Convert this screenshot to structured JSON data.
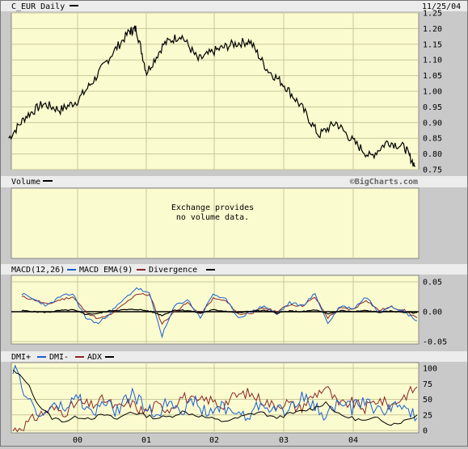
{
  "chart_data": [
    {
      "type": "line",
      "panel": "price",
      "title": "C_EUR Daily",
      "date": "11/25/04",
      "ylim": [
        0.75,
        1.25
      ],
      "yticks": [
        0.75,
        0.8,
        0.85,
        0.9,
        0.95,
        1.0,
        1.05,
        1.1,
        1.15,
        1.2,
        1.25
      ],
      "xticks": [
        "00",
        "01",
        "02",
        "03",
        "04"
      ],
      "x": [
        1999.0,
        1999.25,
        1999.5,
        1999.75,
        2000.0,
        2000.25,
        2000.5,
        2000.75,
        2000.85,
        2001.0,
        2001.25,
        2001.5,
        2001.75,
        2002.0,
        2002.25,
        2002.5,
        2002.75,
        2003.0,
        2003.25,
        2003.5,
        2003.75,
        2004.0,
        2004.25,
        2004.5,
        2004.75,
        2004.9
      ],
      "series": [
        {
          "name": "C_EUR",
          "values": [
            0.85,
            0.92,
            0.96,
            0.94,
            0.97,
            1.04,
            1.12,
            1.19,
            1.2,
            1.06,
            1.15,
            1.18,
            1.1,
            1.13,
            1.15,
            1.16,
            1.07,
            1.02,
            0.95,
            0.86,
            0.9,
            0.84,
            0.79,
            0.84,
            0.82,
            0.76
          ]
        }
      ]
    },
    {
      "type": "bar",
      "panel": "volume",
      "title": "Volume",
      "watermark": "©BigCharts.com",
      "message": [
        "Exchange provides",
        "no volume data."
      ]
    },
    {
      "type": "line",
      "panel": "macd",
      "ylim": [
        -0.05,
        0.05
      ],
      "yticks": [
        0.05,
        0.0,
        -0.05
      ],
      "yticklabels": [
        "0.05",
        "0.00",
        "-0.05"
      ],
      "legend": [
        "MACD(12,26)",
        "MACD EMA(9)",
        "Divergence"
      ],
      "series": [
        {
          "name": "MACD(12,26)",
          "color": "#1a5fcf",
          "values": [
            0.03,
            0.02,
            0.01,
            0.025,
            0.03,
            -0.01,
            -0.02,
            0.0,
            0.02,
            0.04,
            0.03,
            -0.04,
            0.01,
            0.02,
            -0.01,
            0.03,
            0.02,
            -0.01,
            0.0,
            0.01,
            -0.005,
            0.015,
            0.01,
            0.03,
            -0.02,
            0.01,
            0.005,
            0.025,
            0.0,
            0.01,
            0.0,
            -0.015
          ]
        },
        {
          "name": "MACD EMA(9)",
          "color": "#8b2525",
          "values": [
            0.025,
            0.02,
            0.012,
            0.02,
            0.025,
            0.0,
            -0.012,
            -0.005,
            0.012,
            0.03,
            0.028,
            -0.02,
            0.0,
            0.015,
            -0.005,
            0.022,
            0.018,
            -0.004,
            -0.002,
            0.006,
            0.0,
            0.012,
            0.01,
            0.024,
            -0.01,
            0.006,
            0.004,
            0.02,
            0.002,
            0.008,
            0.002,
            -0.01
          ]
        },
        {
          "name": "Divergence",
          "color": "#000000",
          "values": [
            0.002,
            0.0,
            -0.001,
            0.002,
            0.003,
            -0.004,
            -0.003,
            0.002,
            0.003,
            0.004,
            0.001,
            -0.006,
            0.003,
            0.002,
            -0.002,
            0.003,
            0.001,
            -0.002,
            0.001,
            0.002,
            -0.002,
            0.001,
            0.0,
            0.003,
            -0.004,
            0.002,
            0.0,
            0.002,
            -0.001,
            0.001,
            -0.001,
            -0.002
          ]
        }
      ]
    },
    {
      "type": "line",
      "panel": "dmi",
      "ylim": [
        0,
        100
      ],
      "yticks": [
        0,
        25,
        50,
        75,
        100
      ],
      "legend": [
        "DMI+",
        "DMI-",
        "ADX"
      ],
      "series": [
        {
          "name": "DMI+",
          "color": "#1a5fcf",
          "values": [
            100,
            60,
            20,
            40,
            35,
            55,
            25,
            45,
            30,
            60,
            40,
            25,
            50,
            35,
            45,
            25,
            40,
            30,
            20,
            45,
            35,
            30,
            55,
            40,
            25,
            45,
            35,
            50,
            30,
            40,
            35,
            20
          ]
        },
        {
          "name": "DMI-",
          "color": "#8b2525",
          "values": [
            0,
            10,
            25,
            35,
            30,
            45,
            40,
            50,
            35,
            45,
            30,
            40,
            35,
            55,
            45,
            50,
            40,
            55,
            60,
            50,
            40,
            45,
            35,
            55,
            70,
            40,
            45,
            35,
            50,
            40,
            55,
            70
          ]
        },
        {
          "name": "ADX",
          "color": "#000000",
          "values": [
            96,
            80,
            40,
            20,
            15,
            22,
            20,
            25,
            18,
            30,
            25,
            20,
            22,
            30,
            25,
            20,
            15,
            18,
            25,
            30,
            20,
            25,
            30,
            35,
            45,
            25,
            20,
            15,
            20,
            10,
            15,
            25
          ]
        }
      ]
    }
  ]
}
